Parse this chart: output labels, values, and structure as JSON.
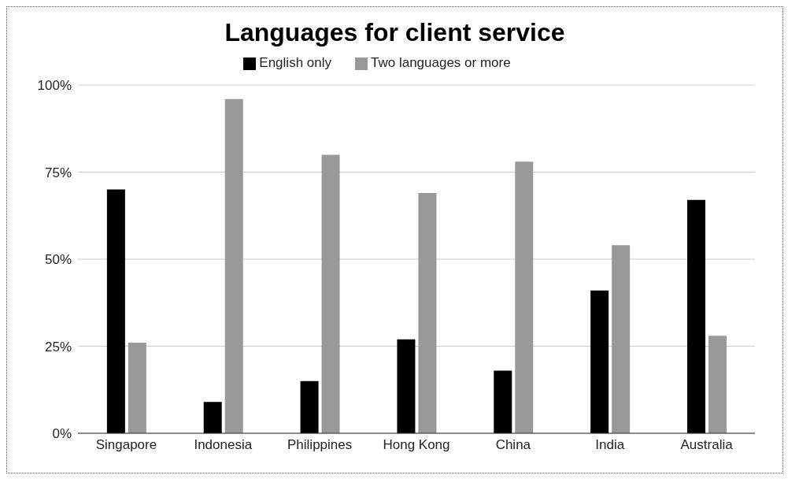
{
  "chart_data": {
    "type": "bar",
    "title": "Languages for client service",
    "categories": [
      "Singapore",
      "Indonesia",
      "Philippines",
      "Hong Kong",
      "China",
      "India",
      "Australia"
    ],
    "series": [
      {
        "name": "English only",
        "color": "#000000",
        "values": [
          70,
          9,
          15,
          27,
          18,
          41,
          67
        ]
      },
      {
        "name": "Two languages or more",
        "color": "#999999",
        "values": [
          26,
          96,
          80,
          69,
          78,
          54,
          28
        ]
      }
    ],
    "ylim": [
      0,
      100
    ],
    "yticks": [
      {
        "value": 0,
        "label": "0%"
      },
      {
        "value": 25,
        "label": "25%"
      },
      {
        "value": 50,
        "label": "50%"
      },
      {
        "value": 75,
        "label": "75%"
      },
      {
        "value": 100,
        "label": "100%"
      }
    ],
    "grid": "y",
    "legend": "top"
  }
}
